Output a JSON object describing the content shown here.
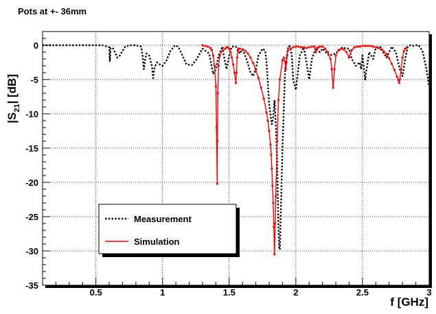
{
  "chart_data": {
    "type": "line",
    "title": "Pots at +- 36mm",
    "xlabel": "f [GHz]",
    "ylabel_main": "|S",
    "ylabel_sub": "21",
    "ylabel_tail": "| [dB]",
    "xlim": [
      0.1,
      3.0
    ],
    "ylim": [
      -35,
      2
    ],
    "xticks": [
      0.5,
      1,
      1.5,
      2,
      2.5,
      3
    ],
    "xtick_labels": [
      "0.5",
      "1",
      "1.5",
      "2",
      "2.5",
      "3"
    ],
    "yticks": [
      0,
      -5,
      -10,
      -15,
      -20,
      -25,
      -30,
      -35
    ],
    "ytick_labels": [
      "0",
      "-5",
      "-10",
      "-15",
      "-20",
      "-25",
      "-30",
      "-35"
    ],
    "grid": true,
    "legend_placement": "lower-left",
    "series": [
      {
        "name": "Measurement",
        "style": "dotted",
        "color": "#000000",
        "x": [
          0.1,
          0.3,
          0.55,
          0.6,
          0.605,
          0.61,
          0.63,
          0.65,
          0.66,
          0.68,
          0.7,
          0.72,
          0.75,
          0.8,
          0.84,
          0.85,
          0.86,
          0.87,
          0.88,
          0.9,
          0.92,
          0.93,
          0.94,
          0.96,
          0.98,
          1.0,
          1.03,
          1.06,
          1.09,
          1.1,
          1.12,
          1.15,
          1.18,
          1.22,
          1.25,
          1.3,
          1.35,
          1.38,
          1.4,
          1.42,
          1.45,
          1.46,
          1.48,
          1.5,
          1.52,
          1.55,
          1.57,
          1.58,
          1.6,
          1.63,
          1.66,
          1.68,
          1.7,
          1.72,
          1.75,
          1.77,
          1.78,
          1.79,
          1.8,
          1.81,
          1.82,
          1.83,
          1.84,
          1.85,
          1.86,
          1.865,
          1.87,
          1.875,
          1.88,
          1.9,
          1.92,
          1.94,
          1.95,
          1.96,
          1.97,
          1.98,
          2.0,
          2.03,
          2.06,
          2.08,
          2.1,
          2.12,
          2.15,
          2.18,
          2.2,
          2.25,
          2.3,
          2.35,
          2.38,
          2.4,
          2.42,
          2.45,
          2.48,
          2.49,
          2.5,
          2.52,
          2.55,
          2.58,
          2.6,
          2.62,
          2.64,
          2.66,
          2.68,
          2.7,
          2.72,
          2.75,
          2.78,
          2.8,
          2.82,
          2.84,
          2.86,
          2.88,
          2.9,
          2.92,
          2.95,
          2.98,
          3.0
        ],
        "y": [
          0,
          0,
          0,
          -0.3,
          -2.3,
          -0.4,
          -0.5,
          -1.3,
          -1.8,
          -1.5,
          -0.8,
          -0.2,
          0,
          0,
          -0.2,
          -1.5,
          -3.5,
          -2.0,
          -1.2,
          -1.5,
          -3.0,
          -4.8,
          -3.2,
          -2.5,
          -2.8,
          -3.0,
          -2.2,
          -0.8,
          -0.1,
          0,
          -0.3,
          -1.5,
          -2.8,
          -2.9,
          -2.2,
          -0.5,
          -1.2,
          -4.2,
          -3.5,
          -1.5,
          -0.2,
          -1.5,
          -3.5,
          -1.5,
          -0.2,
          -0.2,
          -0.8,
          -1.2,
          -0.6,
          -2.0,
          -4.0,
          -4.5,
          -3.5,
          -1.5,
          -0.5,
          -0.8,
          -2.5,
          -5.5,
          -8.5,
          -10.2,
          -11.5,
          -10.5,
          -8.0,
          -11.5,
          -17.0,
          -22.5,
          -27.0,
          -29.5,
          -29.8,
          -15.0,
          -3.5,
          -0.5,
          -0.1,
          -0.4,
          -1.5,
          -5.0,
          -6.5,
          -1.5,
          -0.3,
          -2.5,
          -5.0,
          -2.0,
          -0.4,
          -1.0,
          -0.5,
          -1.5,
          -1.2,
          -0.3,
          -0.5,
          -0.5,
          -2.0,
          -3.0,
          -2.5,
          -3.5,
          -1.5,
          -5.0,
          -1.0,
          -2.0,
          -0.4,
          -0.2,
          -0.3,
          -1.2,
          -1.8,
          -1.0,
          -0.2,
          -1.0,
          -3.5,
          -4.5,
          -2.0,
          -0.2,
          0,
          -0.1,
          0,
          0,
          -0.8,
          -3.5,
          -6.0
        ]
      },
      {
        "name": "Simulation",
        "style": "solid",
        "color": "#ff0000",
        "x": [
          1.3,
          1.32,
          1.34,
          1.36,
          1.37,
          1.38,
          1.39,
          1.4,
          1.405,
          1.41,
          1.412,
          1.415,
          1.42,
          1.43,
          1.45,
          1.47,
          1.48,
          1.49,
          1.5,
          1.51,
          1.52,
          1.53,
          1.54,
          1.55,
          1.555,
          1.56,
          1.565,
          1.57,
          1.58,
          1.6,
          1.62,
          1.64,
          1.66,
          1.68,
          1.7,
          1.72,
          1.74,
          1.76,
          1.78,
          1.79,
          1.8,
          1.81,
          1.815,
          1.82,
          1.825,
          1.83,
          1.835,
          1.84,
          1.845,
          1.85,
          1.86,
          1.87,
          1.88,
          1.9,
          1.91,
          1.92,
          1.925,
          1.93,
          1.935,
          1.94,
          1.96,
          1.98,
          2.0,
          2.02,
          2.04,
          2.06,
          2.08,
          2.1,
          2.12,
          2.14,
          2.15,
          2.16,
          2.17,
          2.18,
          2.2,
          2.22,
          2.24,
          2.26,
          2.27,
          2.28,
          2.29,
          2.3,
          2.32,
          2.34,
          2.36,
          2.38,
          2.4,
          2.42,
          2.44,
          2.46,
          2.48,
          2.5,
          2.52,
          2.54,
          2.56,
          2.58,
          2.6,
          2.62,
          2.64,
          2.66,
          2.68,
          2.7,
          2.72,
          2.74,
          2.76,
          2.77,
          2.775,
          2.78,
          2.79,
          2.8,
          2.81,
          2.82,
          2.83
        ],
        "y": [
          0,
          -0.1,
          -0.2,
          -0.4,
          -0.7,
          -1.5,
          -3.0,
          -6.0,
          -12.0,
          -20.2,
          -14.0,
          -7.0,
          -3.0,
          -1.5,
          -0.8,
          -0.5,
          -0.3,
          -0.3,
          -0.5,
          -1.0,
          -1.8,
          -2.8,
          -4.0,
          -5.5,
          -4.0,
          -1.8,
          -0.8,
          -0.5,
          -0.5,
          -0.6,
          -0.8,
          -1.2,
          -1.8,
          -2.6,
          -3.6,
          -4.8,
          -6.2,
          -7.8,
          -9.8,
          -11.0,
          -12.5,
          -14.5,
          -16.0,
          -18.0,
          -20.5,
          -23.0,
          -26.5,
          -30.5,
          -26.0,
          -22.0,
          -14.0,
          -8.0,
          -5.0,
          -2.2,
          -1.8,
          -2.5,
          -3.5,
          -2.5,
          -1.5,
          -0.8,
          -0.5,
          -0.3,
          -0.2,
          -0.2,
          -0.3,
          -0.3,
          -0.4,
          -0.3,
          -0.2,
          -0.2,
          -1.0,
          -0.4,
          -0.3,
          -0.2,
          -0.2,
          -0.5,
          -1.0,
          -2.0,
          -3.5,
          -6.2,
          -3.5,
          -1.5,
          -0.7,
          -0.5,
          -0.6,
          -1.0,
          -1.8,
          -0.7,
          -0.3,
          -0.2,
          -0.2,
          -0.1,
          -0.1,
          -0.1,
          -0.1,
          -0.2,
          -0.3,
          -0.4,
          -0.6,
          -0.9,
          -1.3,
          -1.9,
          -2.7,
          -3.6,
          -4.6,
          -5.1,
          -5.5,
          -5.0,
          -3.5,
          -1.8,
          -0.9,
          -0.5,
          -0.4
        ]
      }
    ]
  }
}
